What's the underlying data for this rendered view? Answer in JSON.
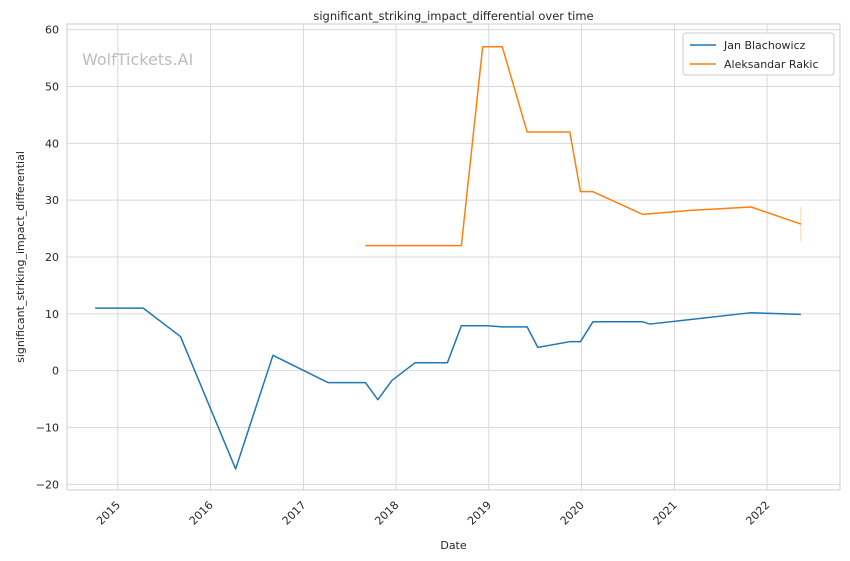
{
  "chart_data": {
    "type": "line",
    "title": "significant_striking_impact_differential over time",
    "xlabel": "Date",
    "ylabel": "significant_striking_impact_differential",
    "watermark": "WolfTickets.AI",
    "ylim": [
      -21,
      61
    ],
    "xlim": [
      "2014-06-15",
      "2022-10-15"
    ],
    "y_ticks": [
      -20,
      -10,
      0,
      10,
      20,
      30,
      40,
      50,
      60
    ],
    "x_ticks": [
      "2015-01-01",
      "2016-01-01",
      "2017-01-01",
      "2018-01-01",
      "2019-01-01",
      "2020-01-01",
      "2021-01-01",
      "2022-01-01"
    ],
    "x_tick_labels": [
      "2015",
      "2016",
      "2017",
      "2018",
      "2019",
      "2020",
      "2021",
      "2022"
    ],
    "y_tick_labels": [
      "−20",
      "−10",
      "0",
      "10",
      "20",
      "30",
      "40",
      "50",
      "60"
    ],
    "grid": true,
    "legend_position": "top-right",
    "series": [
      {
        "name": "Jan Blachowicz",
        "color": "#1f77b4",
        "points": [
          [
            "2014-10-04",
            11.0
          ],
          [
            "2015-04-11",
            11.0
          ],
          [
            "2015-09-05",
            6.0
          ],
          [
            "2016-04-09",
            -17.3
          ],
          [
            "2016-09-03",
            2.7
          ],
          [
            "2017-04-08",
            -2.1
          ],
          [
            "2017-09-02",
            -2.1
          ],
          [
            "2017-10-21",
            -5.1
          ],
          [
            "2017-12-16",
            -1.7
          ],
          [
            "2018-03-17",
            1.4
          ],
          [
            "2018-07-22",
            1.4
          ],
          [
            "2018-09-15",
            7.9
          ],
          [
            "2018-12-29",
            7.9
          ],
          [
            "2019-02-23",
            7.7
          ],
          [
            "2019-06-01",
            7.7
          ],
          [
            "2019-07-13",
            4.1
          ],
          [
            "2019-11-16",
            5.1
          ],
          [
            "2019-12-28",
            5.1
          ],
          [
            "2020-02-15",
            8.6
          ],
          [
            "2020-08-29",
            8.6
          ],
          [
            "2020-09-26",
            8.2
          ],
          [
            "2021-03-06",
            9.0
          ],
          [
            "2021-10-30",
            10.2
          ],
          [
            "2022-05-14",
            9.9
          ]
        ]
      },
      {
        "name": "Aleksandar Rakic",
        "color": "#ff7f0e",
        "points": [
          [
            "2017-09-02",
            22.0
          ],
          [
            "2018-09-15",
            22.0
          ],
          [
            "2018-12-08",
            57.0
          ],
          [
            "2019-02-23",
            57.0
          ],
          [
            "2019-06-01",
            42.0
          ],
          [
            "2019-11-16",
            42.0
          ],
          [
            "2019-12-28",
            31.5
          ],
          [
            "2020-02-15",
            31.5
          ],
          [
            "2020-08-29",
            27.5
          ],
          [
            "2021-03-06",
            28.2
          ],
          [
            "2021-10-30",
            28.8
          ],
          [
            "2022-05-14",
            25.8
          ]
        ],
        "error_bar": {
          "x": "2022-05-14",
          "low": 22.8,
          "high": 28.8
        }
      }
    ]
  }
}
